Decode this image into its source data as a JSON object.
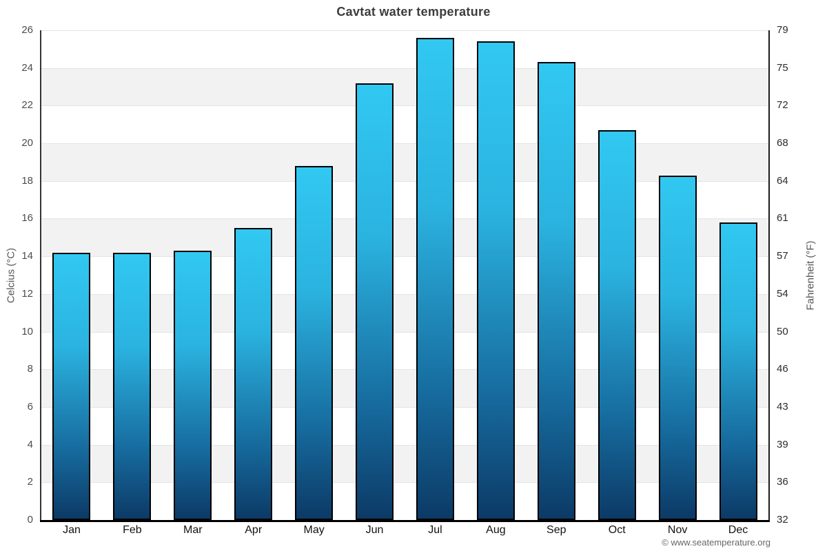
{
  "chart_data": {
    "type": "bar",
    "title": "Cavtat water temperature",
    "categories": [
      "Jan",
      "Feb",
      "Mar",
      "Apr",
      "May",
      "Jun",
      "Jul",
      "Aug",
      "Sep",
      "Oct",
      "Nov",
      "Dec"
    ],
    "values": [
      14.2,
      14.2,
      14.3,
      15.5,
      18.8,
      23.2,
      25.6,
      25.4,
      24.3,
      20.7,
      18.3,
      15.8
    ],
    "series_name": "Water temperature",
    "xlabel": "",
    "ylabel_left": "Celcius (°C)",
    "ylabel_right": "Fahrenheit (°F)",
    "ylim": [
      0,
      26
    ],
    "celsius_ticks": [
      26,
      24,
      22,
      20,
      18,
      16,
      14,
      12,
      10,
      8,
      6,
      4,
      2,
      0
    ],
    "fahrenheit_ticks": [
      79,
      75,
      72,
      68,
      64,
      61,
      57,
      54,
      50,
      46,
      43,
      39,
      36,
      32
    ],
    "legend": "none",
    "grid": "alternating horizontal bands every 2 °C",
    "colors": {
      "bar_gradient_top": "#31c8f1",
      "bar_gradient_bottom": "#0c3a66",
      "bar_border": "#000000",
      "band": "#f2f2f2",
      "gridline": "#e4e4e4",
      "axis_line": "#333333",
      "baseline": "#000000",
      "title_text": "#3d3d3d",
      "tick_text": "#4d4d4d",
      "month_text": "#111111",
      "watermark_text": "#666666"
    }
  },
  "footer": {
    "watermark": "© www.seatemperature.org"
  }
}
